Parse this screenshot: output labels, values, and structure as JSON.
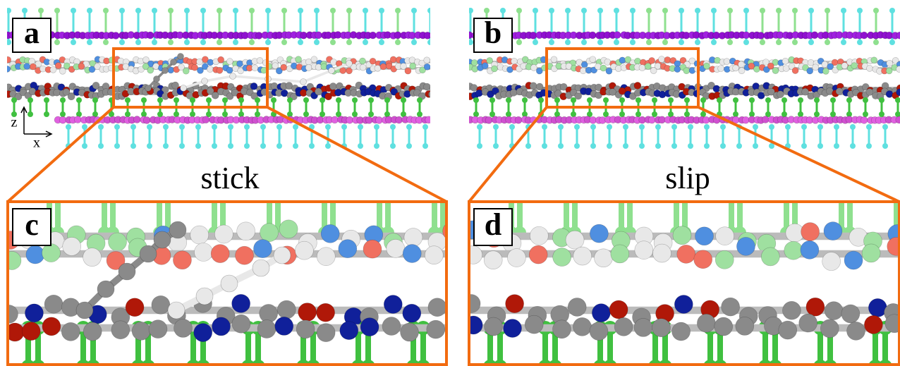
{
  "panels": [
    {
      "label": "a"
    },
    {
      "label": "b"
    },
    {
      "label": "c"
    },
    {
      "label": "d"
    }
  ],
  "captions": [
    "stick",
    "slip"
  ],
  "axes": {
    "z": "z",
    "x": "x"
  }
}
